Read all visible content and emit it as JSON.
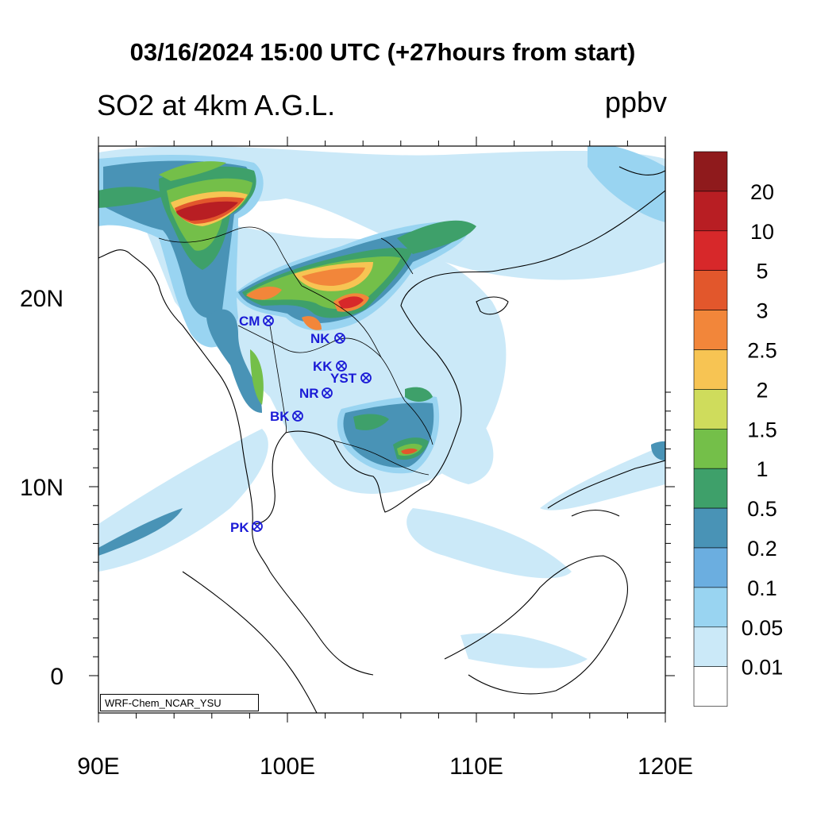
{
  "header": {
    "title": "03/16/2024 15:00 UTC (+27hours from start)",
    "subtitle": "SO2 at 4km A.G.L.",
    "units": "ppbv"
  },
  "axes": {
    "x_ticks": [
      "90E",
      "100E",
      "110E",
      "120E"
    ],
    "y_ticks": [
      "20N",
      "10N",
      "0"
    ]
  },
  "colorbar": {
    "levels": [
      "20",
      "10",
      "5",
      "3",
      "2.5",
      "2",
      "1.5",
      "1",
      "0.5",
      "0.2",
      "0.1",
      "0.05",
      "0.01"
    ],
    "colors": [
      "#8f1a1c",
      "#b81e23",
      "#d7282a",
      "#e2572c",
      "#f2863a",
      "#f7c453",
      "#cfdc5c",
      "#74bf49",
      "#3ea06a",
      "#4993b6",
      "#6baee0",
      "#99d4f1",
      "#cbe9f8",
      "#ffffff"
    ]
  },
  "stations": [
    {
      "name": "CM"
    },
    {
      "name": "NK"
    },
    {
      "name": "KK"
    },
    {
      "name": "YST"
    },
    {
      "name": "NR"
    },
    {
      "name": "BK"
    },
    {
      "name": "PK"
    }
  ],
  "credit": "WRF-Chem_NCAR_YSU"
}
